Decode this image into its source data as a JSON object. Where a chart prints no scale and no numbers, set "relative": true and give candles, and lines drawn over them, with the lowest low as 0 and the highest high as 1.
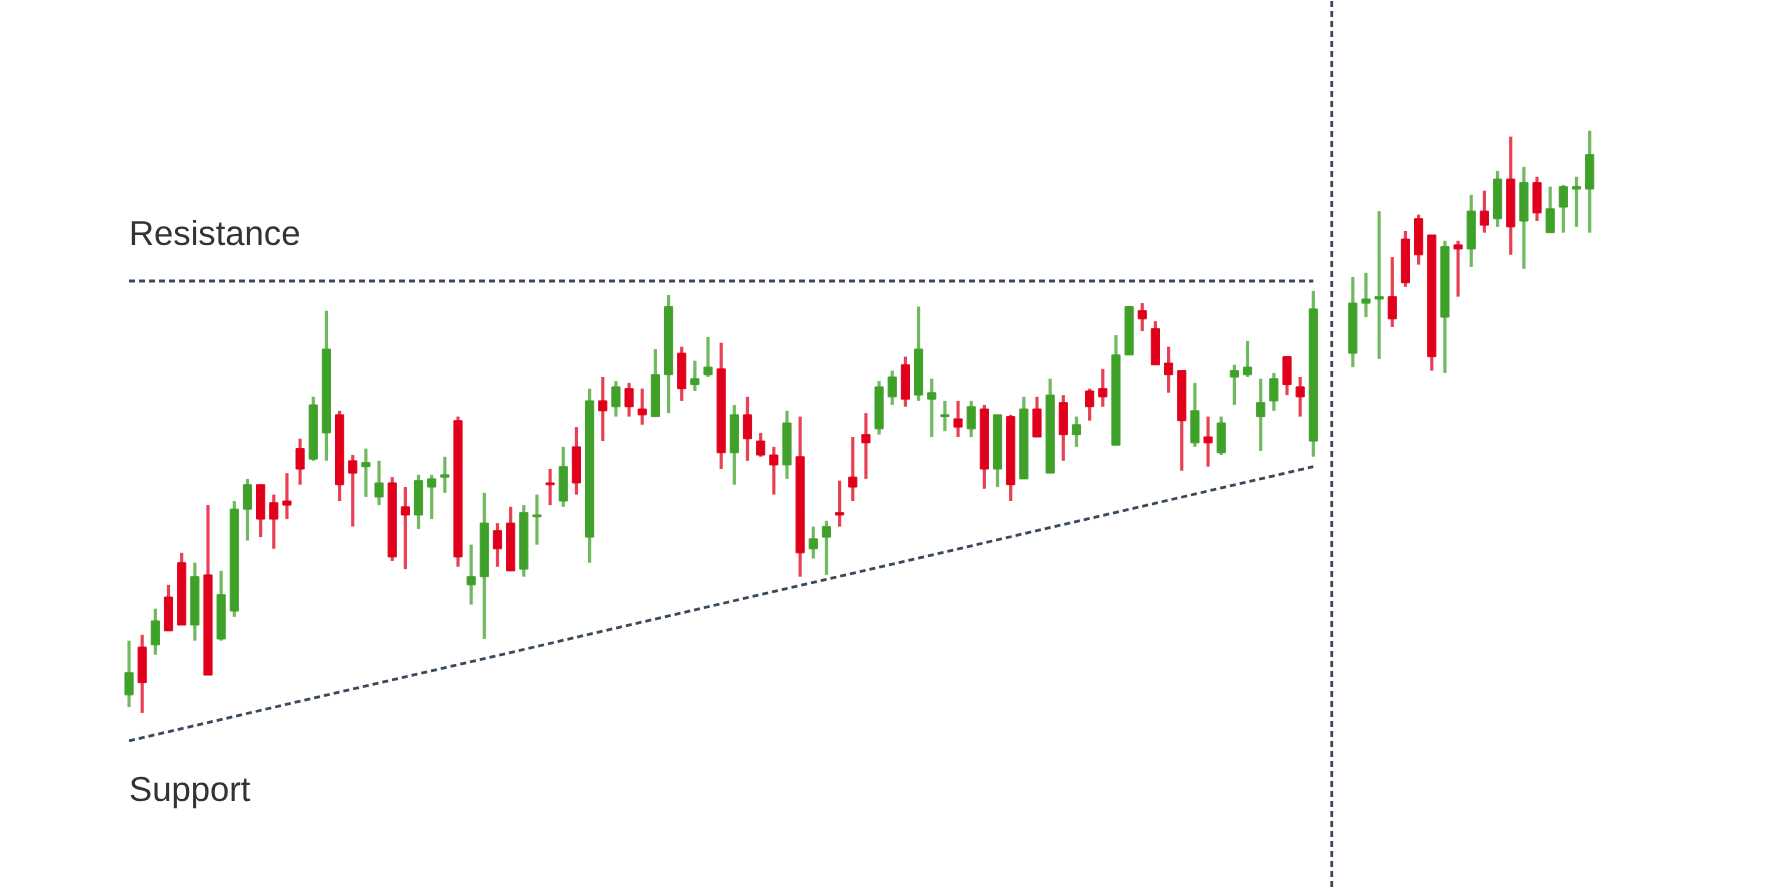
{
  "chart_data": {
    "type": "candlestick",
    "relative": true,
    "categories": [
      null,
      null,
      null,
      null,
      null,
      null,
      null,
      null,
      null,
      null,
      null,
      null,
      null,
      null,
      null,
      null,
      null,
      null,
      null,
      null,
      null,
      null,
      null,
      null,
      null,
      null,
      null,
      null,
      null,
      null,
      null,
      null,
      null,
      null,
      null,
      null,
      null,
      null,
      null,
      null,
      null,
      null,
      null,
      null,
      null,
      null,
      null,
      null,
      null,
      null,
      null,
      null,
      null,
      null,
      null,
      null,
      null,
      null,
      null,
      null,
      null,
      null,
      null,
      null,
      null,
      null,
      null,
      null,
      null,
      null,
      null,
      null,
      null,
      null,
      null,
      null,
      null,
      null,
      null,
      null,
      null,
      null,
      null,
      null,
      null,
      null,
      null,
      null,
      null,
      null,
      null,
      null,
      null,
      null,
      null,
      null,
      null,
      null,
      null,
      null,
      null,
      null,
      null,
      null,
      null,
      null,
      null,
      null,
      null,
      null,
      null,
      null
    ],
    "ohlc": [
      [
        0.031,
        0.124,
        0.01,
        0.069
      ],
      [
        0.113,
        0.134,
        0,
        0.052
      ],
      [
        0.117,
        0.179,
        0.1,
        0.158
      ],
      [
        0.199,
        0.22,
        0.141,
        0.141
      ],
      [
        0.258,
        0.275,
        0.151,
        0.151
      ],
      [
        0.151,
        0.258,
        0.124,
        0.234
      ],
      [
        0.237,
        0.357,
        0.065,
        0.065
      ],
      [
        0.127,
        0.244,
        0.124,
        0.203
      ],
      [
        0.175,
        0.364,
        0.165,
        0.35
      ],
      [
        0.35,
        0.402,
        0.296,
        0.392
      ],
      [
        0.392,
        0.392,
        0.302,
        0.333
      ],
      [
        0.361,
        0.375,
        0.282,
        0.333
      ],
      [
        0.364,
        0.412,
        0.333,
        0.357
      ],
      [
        0.454,
        0.471,
        0.392,
        0.419
      ],
      [
        0.436,
        0.543,
        0.433,
        0.529
      ],
      [
        0.481,
        0.691,
        0.433,
        0.625
      ],
      [
        0.512,
        0.519,
        0.364,
        0.392
      ],
      [
        0.433,
        0.443,
        0.32,
        0.412
      ],
      [
        0.423,
        0.454,
        0.371,
        0.43
      ],
      [
        0.371,
        0.433,
        0.357,
        0.395
      ],
      [
        0.395,
        0.405,
        0.261,
        0.268
      ],
      [
        0.354,
        0.388,
        0.247,
        0.34
      ],
      [
        0.34,
        0.409,
        0.316,
        0.399
      ],
      [
        0.388,
        0.409,
        0.333,
        0.402
      ],
      [
        0.405,
        0.44,
        0.378,
        0.409
      ],
      [
        0.502,
        0.509,
        0.251,
        0.268
      ],
      [
        0.22,
        0.289,
        0.186,
        0.234
      ],
      [
        0.234,
        0.378,
        0.127,
        0.326
      ],
      [
        0.313,
        0.326,
        0.251,
        0.282
      ],
      [
        0.326,
        0.354,
        0.244,
        0.244
      ],
      [
        0.247,
        0.357,
        0.234,
        0.344
      ],
      [
        0.337,
        0.375,
        0.289,
        0.34
      ],
      [
        0.395,
        0.419,
        0.357,
        0.392
      ],
      [
        0.364,
        0.457,
        0.354,
        0.423
      ],
      [
        0.457,
        0.491,
        0.375,
        0.395
      ],
      [
        0.302,
        0.557,
        0.258,
        0.536
      ],
      [
        0.536,
        0.577,
        0.467,
        0.519
      ],
      [
        0.526,
        0.57,
        0.509,
        0.56
      ],
      [
        0.557,
        0.567,
        0.509,
        0.526
      ],
      [
        0.522,
        0.557,
        0.495,
        0.512
      ],
      [
        0.509,
        0.625,
        0.509,
        0.581
      ],
      [
        0.581,
        0.718,
        0.515,
        0.698
      ],
      [
        0.618,
        0.629,
        0.536,
        0.557
      ],
      [
        0.564,
        0.605,
        0.553,
        0.574
      ],
      [
        0.581,
        0.646,
        0.577,
        0.594
      ],
      [
        0.591,
        0.636,
        0.419,
        0.447
      ],
      [
        0.447,
        0.529,
        0.392,
        0.512
      ],
      [
        0.512,
        0.543,
        0.433,
        0.471
      ],
      [
        0.467,
        0.481,
        0.44,
        0.443
      ],
      [
        0.443,
        0.457,
        0.375,
        0.426
      ],
      [
        0.426,
        0.519,
        0.402,
        0.498
      ],
      [
        0.44,
        0.509,
        0.234,
        0.275
      ],
      [
        0.282,
        0.32,
        0.265,
        0.299
      ],
      [
        0.302,
        0.33,
        0.237,
        0.32
      ],
      [
        0.344,
        0.399,
        0.32,
        0.34
      ],
      [
        0.405,
        0.474,
        0.364,
        0.388
      ],
      [
        0.478,
        0.515,
        0.402,
        0.464
      ],
      [
        0.488,
        0.57,
        0.478,
        0.56
      ],
      [
        0.543,
        0.588,
        0.529,
        0.577
      ],
      [
        0.598,
        0.612,
        0.526,
        0.539
      ],
      [
        0.546,
        0.698,
        0.536,
        0.625
      ],
      [
        0.539,
        0.574,
        0.474,
        0.55
      ],
      [
        0.509,
        0.536,
        0.484,
        0.512
      ],
      [
        0.505,
        0.536,
        0.474,
        0.491
      ],
      [
        0.488,
        0.536,
        0.474,
        0.526
      ],
      [
        0.522,
        0.529,
        0.385,
        0.419
      ],
      [
        0.419,
        0.512,
        0.388,
        0.512
      ],
      [
        0.509,
        0.512,
        0.364,
        0.392
      ],
      [
        0.402,
        0.543,
        0.402,
        0.522
      ],
      [
        0.522,
        0.543,
        0.474,
        0.474
      ],
      [
        0.412,
        0.574,
        0.412,
        0.546
      ],
      [
        0.533,
        0.546,
        0.433,
        0.478
      ],
      [
        0.478,
        0.509,
        0.457,
        0.495
      ],
      [
        0.553,
        0.557,
        0.502,
        0.526
      ],
      [
        0.557,
        0.591,
        0.526,
        0.543
      ],
      [
        0.46,
        0.649,
        0.46,
        0.615
      ],
      [
        0.615,
        0.698,
        0.615,
        0.698
      ],
      [
        0.691,
        0.704,
        0.656,
        0.677
      ],
      [
        0.66,
        0.673,
        0.598,
        0.598
      ],
      [
        0.601,
        0.629,
        0.55,
        0.581
      ],
      [
        0.588,
        0.588,
        0.416,
        0.502
      ],
      [
        0.464,
        0.567,
        0.457,
        0.519
      ],
      [
        0.474,
        0.509,
        0.423,
        0.464
      ],
      [
        0.447,
        0.509,
        0.443,
        0.498
      ],
      [
        0.577,
        0.598,
        0.529,
        0.588
      ],
      [
        0.581,
        0.639,
        0.577,
        0.594
      ],
      [
        0.509,
        0.574,
        0.45,
        0.533
      ],
      [
        0.536,
        0.584,
        0.519,
        0.574
      ],
      [
        0.612,
        0.612,
        0.546,
        0.564
      ],
      [
        0.56,
        0.577,
        0.509,
        0.543
      ],
      [
        0.467,
        0.725,
        0.44,
        0.694
      ],
      null,
      null,
      [
        0.618,
        0.749,
        0.594,
        0.704
      ],
      [
        0.704,
        0.756,
        0.68,
        0.711
      ],
      [
        0.711,
        0.862,
        0.608,
        0.715
      ],
      [
        0.715,
        0.783,
        0.663,
        0.677
      ],
      [
        0.814,
        0.828,
        0.732,
        0.739
      ],
      [
        0.849,
        0.856,
        0.77,
        0.787
      ],
      [
        0.821,
        0.821,
        0.588,
        0.612
      ],
      [
        0.68,
        0.811,
        0.584,
        0.801
      ],
      [
        0.804,
        0.811,
        0.715,
        0.797
      ],
      [
        0.797,
        0.89,
        0.766,
        0.862
      ],
      [
        0.862,
        0.897,
        0.825,
        0.838
      ],
      [
        0.849,
        0.931,
        0.835,
        0.917
      ],
      [
        0.917,
        0.99,
        0.787,
        0.835
      ],
      [
        0.845,
        0.938,
        0.763,
        0.911
      ],
      [
        0.911,
        0.921,
        0.845,
        0.859
      ],
      [
        0.825,
        0.904,
        0.825,
        0.866
      ],
      [
        0.869,
        0.907,
        0.825,
        0.904
      ],
      [
        0.9,
        0.921,
        0.835,
        0.904
      ],
      [
        0.9,
        1,
        0.825,
        0.959
      ]
    ],
    "colors": [
      "#3fa12a",
      "#e0001b",
      "#3fa12a",
      "#e0001b",
      "#e0001b",
      "#3fa12a",
      "#e0001b",
      "#3fa12a",
      "#3fa12a",
      "#3fa12a",
      "#e0001b",
      "#e0001b",
      "#e0001b",
      "#e0001b",
      "#3fa12a",
      "#3fa12a",
      "#e0001b",
      "#e0001b",
      "#3fa12a",
      "#3fa12a",
      "#e0001b",
      "#e0001b",
      "#3fa12a",
      "#3fa12a",
      "#3fa12a",
      "#e0001b",
      "#3fa12a",
      "#3fa12a",
      "#e0001b",
      "#e0001b",
      "#3fa12a",
      "#3fa12a",
      "#e0001b",
      "#3fa12a",
      "#e0001b",
      "#3fa12a",
      "#e0001b",
      "#3fa12a",
      "#e0001b",
      "#e0001b",
      "#3fa12a",
      "#3fa12a",
      "#e0001b",
      "#3fa12a",
      "#3fa12a",
      "#e0001b",
      "#3fa12a",
      "#e0001b",
      "#e0001b",
      "#e0001b",
      "#3fa12a",
      "#e0001b",
      "#3fa12a",
      "#3fa12a",
      "#e0001b",
      "#e0001b",
      "#e0001b",
      "#3fa12a",
      "#3fa12a",
      "#e0001b",
      "#3fa12a",
      "#3fa12a",
      "#3fa12a",
      "#e0001b",
      "#3fa12a",
      "#e0001b",
      "#3fa12a",
      "#e0001b",
      "#3fa12a",
      "#e0001b",
      "#3fa12a",
      "#e0001b",
      "#3fa12a",
      "#e0001b",
      "#e0001b",
      "#3fa12a",
      "#3fa12a",
      "#e0001b",
      "#e0001b",
      "#e0001b",
      "#e0001b",
      "#3fa12a",
      "#e0001b",
      "#3fa12a",
      "#3fa12a",
      "#3fa12a",
      "#3fa12a",
      "#3fa12a",
      "#e0001b",
      "#e0001b",
      "#3fa12a",
      null,
      null,
      "#3fa12a",
      "#3fa12a",
      "#3fa12a",
      "#e0001b",
      "#e0001b",
      "#e0001b",
      "#e0001b",
      "#3fa12a",
      "#e0001b",
      "#3fa12a",
      "#e0001b",
      "#3fa12a",
      "#e0001b",
      "#3fa12a",
      "#e0001b",
      "#3fa12a",
      "#3fa12a",
      "#3fa12a",
      "#3fa12a"
    ],
    "series": [
      {
        "type": "line",
        "values": [
          0.742,
          null,
          null,
          null,
          null,
          null,
          null,
          null,
          null,
          null,
          null,
          null,
          null,
          null,
          null,
          null,
          null,
          null,
          null,
          null,
          null,
          null,
          null,
          null,
          null,
          null,
          null,
          null,
          null,
          null,
          null,
          null,
          null,
          null,
          null,
          null,
          null,
          null,
          null,
          null,
          null,
          null,
          null,
          null,
          null,
          null,
          null,
          null,
          null,
          null,
          null,
          null,
          null,
          null,
          null,
          null,
          null,
          null,
          null,
          null,
          null,
          null,
          null,
          null,
          null,
          null,
          null,
          null,
          null,
          null,
          null,
          null,
          null,
          null,
          null,
          null,
          null,
          null,
          null,
          null,
          null,
          null,
          null,
          null,
          null,
          null,
          null,
          null,
          null,
          null,
          0.742,
          null,
          null,
          null,
          null,
          null,
          null,
          null,
          null,
          null,
          null,
          null,
          null,
          null,
          null,
          null,
          null,
          null,
          null,
          null,
          null,
          null
        ],
        "color": "#3b4a5a",
        "line_style": "dashed"
      },
      {
        "type": "line",
        "values": [
          -0.048,
          null,
          null,
          null,
          null,
          null,
          null,
          null,
          null,
          null,
          null,
          null,
          null,
          null,
          null,
          null,
          null,
          null,
          null,
          null,
          null,
          null,
          null,
          null,
          null,
          null,
          null,
          null,
          null,
          null,
          null,
          null,
          null,
          null,
          null,
          null,
          null,
          null,
          null,
          null,
          null,
          null,
          null,
          null,
          null,
          null,
          null,
          null,
          null,
          null,
          null,
          null,
          null,
          null,
          null,
          null,
          null,
          null,
          null,
          null,
          null,
          null,
          null,
          null,
          null,
          null,
          null,
          null,
          null,
          null,
          null,
          null,
          null,
          null,
          null,
          null,
          null,
          null,
          null,
          null,
          null,
          null,
          null,
          null,
          null,
          null,
          null,
          null,
          null,
          null,
          0.423,
          null,
          null,
          null,
          null,
          null,
          null,
          null,
          null,
          null,
          null,
          null,
          null,
          null,
          null,
          null,
          null,
          null,
          null,
          null,
          null,
          null
        ],
        "color": "#3b4a5a",
        "line_style": "dashed"
      }
    ],
    "annotations": [
      "Resistance",
      "Support"
    ]
  }
}
